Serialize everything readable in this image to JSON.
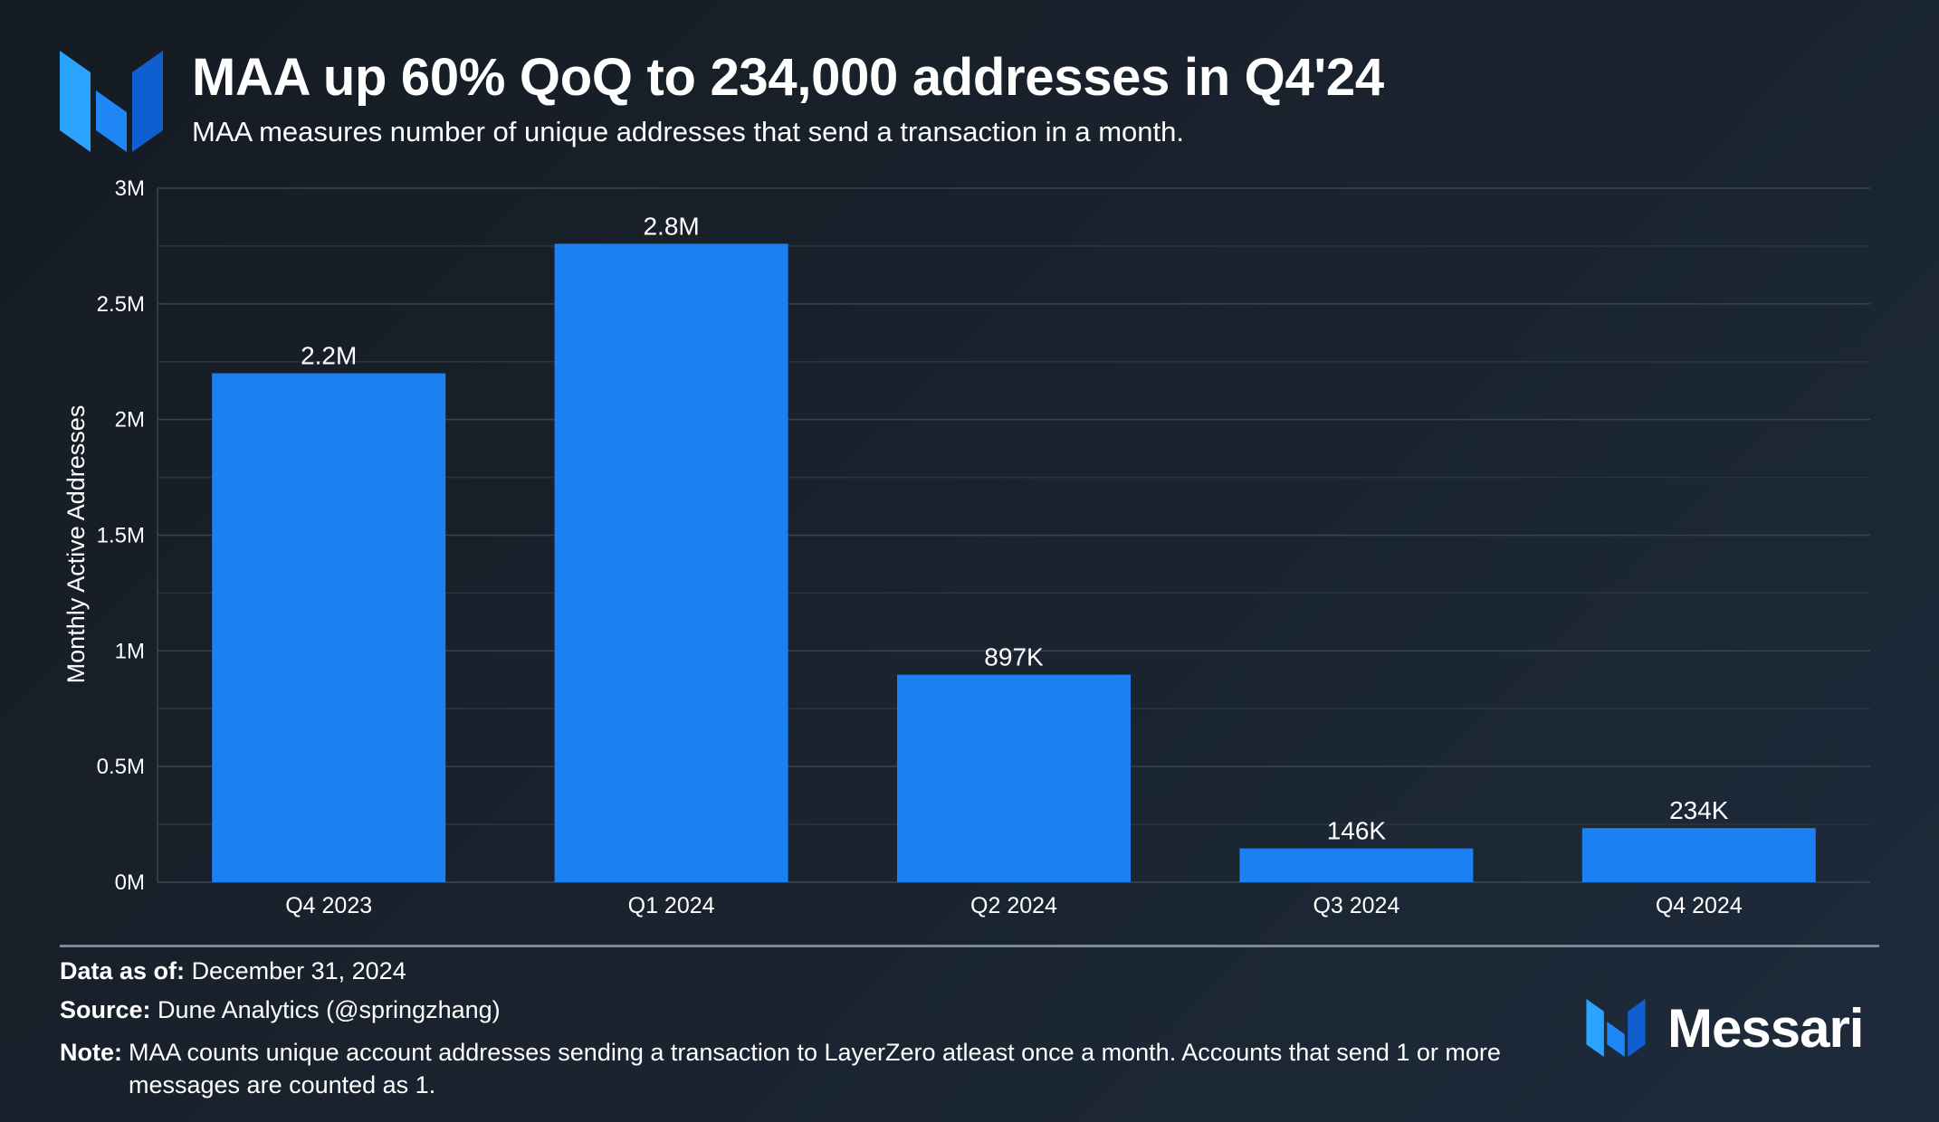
{
  "header": {
    "title": "MAA up 60% QoQ to 234,000 addresses in Q4'24",
    "subtitle": "MAA measures number of unique addresses that send a transaction in a month."
  },
  "chart_data": {
    "type": "bar",
    "categories": [
      "Q4 2023",
      "Q1 2024",
      "Q2 2024",
      "Q3 2024",
      "Q4 2024"
    ],
    "values": [
      2200000,
      2760000,
      897000,
      146000,
      234000
    ],
    "data_labels": [
      "2.2M",
      "2.8M",
      "897K",
      "146K",
      "234K"
    ],
    "ylabel": "Monthly Active Addresses",
    "ylim": [
      0,
      3000000
    ],
    "yticks": [
      0,
      500000,
      1000000,
      1500000,
      2000000,
      2500000,
      3000000
    ],
    "ytick_labels": [
      "0M",
      "0.5M",
      "1M",
      "1.5M",
      "2M",
      "2.5M",
      "3M"
    ],
    "grid": true,
    "bar_color": "#1b80f2"
  },
  "footer": {
    "data_as_of_label": "Data as of:",
    "data_as_of_value": "December 31, 2024",
    "source_label": "Source:",
    "source_value": "Dune Analytics (@springzhang)",
    "note_label": "Note:",
    "note_value": "MAA counts unique account addresses sending a transaction to LayerZero atleast once a month. Accounts that send 1 or more messages are counted as 1."
  },
  "brand": {
    "name": "Messari",
    "icon": "messari-logo-icon",
    "colors": {
      "light": "#2aa3ff",
      "mid": "#1e86f5",
      "dark": "#0f5fd0"
    }
  }
}
